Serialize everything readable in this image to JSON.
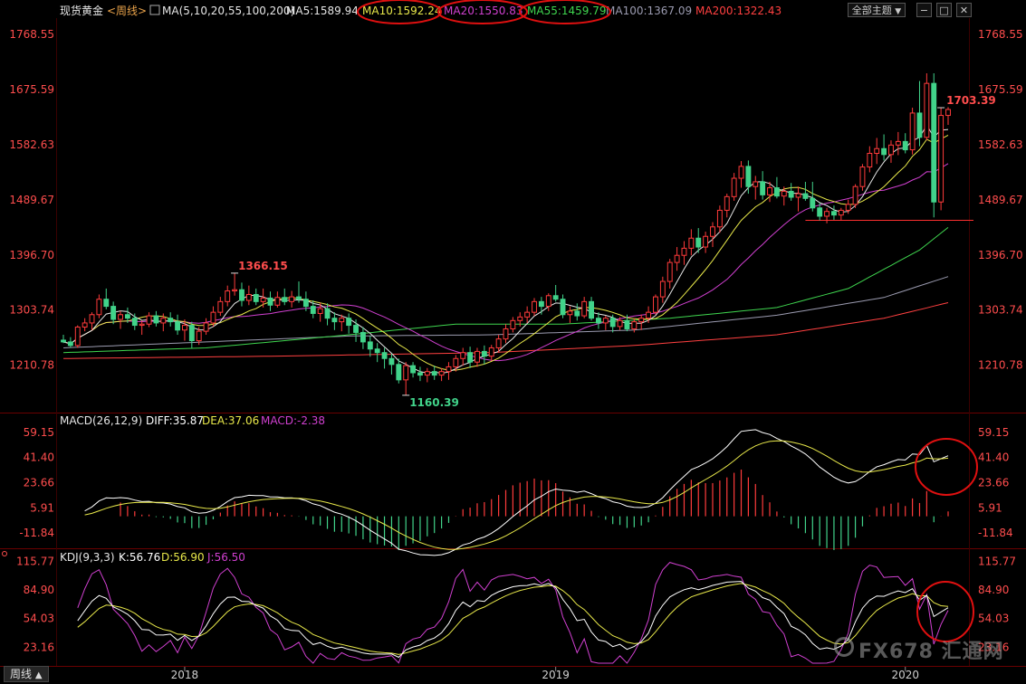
{
  "header": {
    "symbol": "现货黄金",
    "period_tag": "<周线>",
    "ma_params": "MA(5,10,20,55,100,200)",
    "ma": [
      {
        "label": "MA5:1589.94",
        "color": "#e6e6e6"
      },
      {
        "label": "MA10:1592.24",
        "color": "#e8e84a"
      },
      {
        "label": "MA20:1550.83",
        "color": "#d040d0"
      },
      {
        "label": "MA55:1459.79",
        "color": "#3fd64f"
      },
      {
        "label": "MA100:1367.09",
        "color": "#9b9bb0"
      },
      {
        "label": "MA200:1322.43",
        "color": "#ff4040"
      }
    ],
    "theme_button": "全部主题",
    "theme_button_arrow": "▼"
  },
  "price_axis": {
    "labels": [
      "1768.55",
      "1675.59",
      "1582.63",
      "1489.67",
      "1396.70",
      "1303.74",
      "1210.78"
    ],
    "values": [
      1768.55,
      1675.59,
      1582.63,
      1489.67,
      1396.7,
      1303.74,
      1210.78
    ]
  },
  "annotations": {
    "high_2018": "1366.15",
    "low_2018": "1160.39",
    "high_2020": "1703.39"
  },
  "macd": {
    "title": "MACD(26,12,9)",
    "diff": "DIFF:35.87",
    "dea": "DEA:37.06",
    "macd": "MACD:-2.38",
    "axis_labels": [
      "59.15",
      "41.40",
      "23.66",
      "5.91",
      "-11.84"
    ],
    "axis_values": [
      59.15,
      41.4,
      23.66,
      5.91,
      -11.84
    ]
  },
  "kdj": {
    "title": "KDJ(9,3,3)",
    "k": "K:56.76",
    "d": "D:56.90",
    "j": "J:56.50",
    "axis_labels": [
      "115.77",
      "84.90",
      "54.03",
      "23.16"
    ],
    "axis_values": [
      115.77,
      84.9,
      54.03,
      23.16
    ]
  },
  "x_axis": {
    "labels": [
      "2018",
      "2019",
      "2020"
    ]
  },
  "footer": {
    "period_tab": "周线",
    "period_tab_arrow": "▲",
    "watermark": "FX678 汇通网"
  },
  "colors": {
    "up": "#ff3b3b",
    "down": "#41d38a",
    "diff": "#ffffff",
    "dea": "#e8e84a",
    "k": "#ffffff",
    "d": "#e8e84a",
    "j": "#d040d0",
    "circle": "#e01010"
  },
  "chart_data": {
    "type": "candlestick",
    "period": "weekly",
    "candles": [
      [
        1253,
        1262,
        1248,
        1250
      ],
      [
        1250,
        1258,
        1240,
        1244
      ],
      [
        1244,
        1278,
        1240,
        1275
      ],
      [
        1275,
        1290,
        1268,
        1282
      ],
      [
        1282,
        1300,
        1270,
        1296
      ],
      [
        1296,
        1330,
        1290,
        1322
      ],
      [
        1322,
        1340,
        1305,
        1310
      ],
      [
        1310,
        1318,
        1280,
        1288
      ],
      [
        1288,
        1302,
        1272,
        1296
      ],
      [
        1296,
        1308,
        1282,
        1290
      ],
      [
        1290,
        1298,
        1270,
        1278
      ],
      [
        1278,
        1286,
        1262,
        1280
      ],
      [
        1280,
        1300,
        1275,
        1294
      ],
      [
        1294,
        1302,
        1276,
        1282
      ],
      [
        1282,
        1298,
        1268,
        1290
      ],
      [
        1290,
        1300,
        1276,
        1284
      ],
      [
        1284,
        1296,
        1262,
        1270
      ],
      [
        1270,
        1288,
        1252,
        1278
      ],
      [
        1278,
        1284,
        1240,
        1252
      ],
      [
        1252,
        1275,
        1245,
        1268
      ],
      [
        1268,
        1290,
        1262,
        1282
      ],
      [
        1282,
        1310,
        1276,
        1300
      ],
      [
        1300,
        1326,
        1294,
        1318
      ],
      [
        1318,
        1345,
        1310,
        1336
      ],
      [
        1336,
        1366,
        1328,
        1338
      ],
      [
        1338,
        1350,
        1310,
        1320
      ],
      [
        1320,
        1345,
        1312,
        1330
      ],
      [
        1330,
        1340,
        1312,
        1318
      ],
      [
        1318,
        1340,
        1308,
        1324
      ],
      [
        1324,
        1335,
        1302,
        1312
      ],
      [
        1312,
        1335,
        1308,
        1325
      ],
      [
        1325,
        1340,
        1312,
        1318
      ],
      [
        1318,
        1336,
        1308,
        1326
      ],
      [
        1326,
        1352,
        1316,
        1322
      ],
      [
        1322,
        1335,
        1302,
        1310
      ],
      [
        1310,
        1320,
        1290,
        1298
      ],
      [
        1298,
        1316,
        1284,
        1306
      ],
      [
        1306,
        1315,
        1278,
        1290
      ],
      [
        1290,
        1300,
        1270,
        1284
      ],
      [
        1284,
        1296,
        1268,
        1290
      ],
      [
        1290,
        1298,
        1264,
        1278
      ],
      [
        1278,
        1288,
        1250,
        1266
      ],
      [
        1266,
        1275,
        1238,
        1250
      ],
      [
        1250,
        1260,
        1225,
        1238
      ],
      [
        1238,
        1248,
        1216,
        1232
      ],
      [
        1232,
        1240,
        1205,
        1222
      ],
      [
        1222,
        1230,
        1195,
        1212
      ],
      [
        1212,
        1222,
        1180,
        1186
      ],
      [
        1186,
        1216,
        1160,
        1210
      ],
      [
        1210,
        1216,
        1190,
        1198
      ],
      [
        1198,
        1208,
        1184,
        1194
      ],
      [
        1194,
        1206,
        1182,
        1200
      ],
      [
        1200,
        1210,
        1186,
        1194
      ],
      [
        1194,
        1206,
        1184,
        1200
      ],
      [
        1200,
        1216,
        1186,
        1208
      ],
      [
        1208,
        1228,
        1200,
        1222
      ],
      [
        1222,
        1240,
        1210,
        1232
      ],
      [
        1232,
        1242,
        1206,
        1216
      ],
      [
        1216,
        1240,
        1208,
        1234
      ],
      [
        1234,
        1244,
        1212,
        1226
      ],
      [
        1226,
        1245,
        1218,
        1240
      ],
      [
        1240,
        1262,
        1232,
        1255
      ],
      [
        1255,
        1280,
        1248,
        1272
      ],
      [
        1272,
        1292,
        1266,
        1286
      ],
      [
        1286,
        1300,
        1276,
        1292
      ],
      [
        1292,
        1310,
        1282,
        1300
      ],
      [
        1300,
        1324,
        1294,
        1318
      ],
      [
        1318,
        1326,
        1296,
        1310
      ],
      [
        1310,
        1332,
        1302,
        1328
      ],
      [
        1328,
        1346,
        1318,
        1322
      ],
      [
        1322,
        1330,
        1290,
        1296
      ],
      [
        1296,
        1310,
        1282,
        1302
      ],
      [
        1302,
        1315,
        1286,
        1294
      ],
      [
        1294,
        1326,
        1290,
        1318
      ],
      [
        1318,
        1326,
        1286,
        1290
      ],
      [
        1290,
        1300,
        1272,
        1282
      ],
      [
        1282,
        1294,
        1270,
        1290
      ],
      [
        1290,
        1296,
        1266,
        1276
      ],
      [
        1276,
        1292,
        1270,
        1286
      ],
      [
        1286,
        1296,
        1268,
        1272
      ],
      [
        1272,
        1290,
        1266,
        1284
      ],
      [
        1284,
        1296,
        1270,
        1290
      ],
      [
        1290,
        1310,
        1282,
        1300
      ],
      [
        1300,
        1330,
        1296,
        1326
      ],
      [
        1326,
        1360,
        1316,
        1352
      ],
      [
        1352,
        1390,
        1340,
        1384
      ],
      [
        1384,
        1410,
        1370,
        1396
      ],
      [
        1396,
        1420,
        1380,
        1408
      ],
      [
        1408,
        1440,
        1396,
        1425
      ],
      [
        1425,
        1442,
        1400,
        1410
      ],
      [
        1410,
        1436,
        1400,
        1428
      ],
      [
        1428,
        1452,
        1410,
        1444
      ],
      [
        1444,
        1480,
        1434,
        1472
      ],
      [
        1472,
        1500,
        1460,
        1495
      ],
      [
        1495,
        1535,
        1488,
        1526
      ],
      [
        1526,
        1555,
        1510,
        1546
      ],
      [
        1546,
        1556,
        1500,
        1512
      ],
      [
        1512,
        1530,
        1490,
        1520
      ],
      [
        1520,
        1538,
        1490,
        1498
      ],
      [
        1498,
        1520,
        1486,
        1510
      ],
      [
        1510,
        1528,
        1492,
        1496
      ],
      [
        1496,
        1512,
        1480,
        1504
      ],
      [
        1504,
        1518,
        1488,
        1494
      ],
      [
        1494,
        1512,
        1470,
        1500
      ],
      [
        1500,
        1520,
        1488,
        1492
      ],
      [
        1492,
        1520,
        1470,
        1476
      ],
      [
        1476,
        1484,
        1455,
        1462
      ],
      [
        1462,
        1476,
        1450,
        1470
      ],
      [
        1470,
        1480,
        1456,
        1464
      ],
      [
        1464,
        1476,
        1455,
        1472
      ],
      [
        1472,
        1490,
        1466,
        1482
      ],
      [
        1482,
        1516,
        1476,
        1512
      ],
      [
        1512,
        1550,
        1505,
        1545
      ],
      [
        1545,
        1580,
        1536,
        1568
      ],
      [
        1568,
        1594,
        1550,
        1576
      ],
      [
        1576,
        1600,
        1556,
        1566
      ],
      [
        1566,
        1590,
        1552,
        1582
      ],
      [
        1582,
        1604,
        1565,
        1588
      ],
      [
        1588,
        1602,
        1568,
        1574
      ],
      [
        1574,
        1645,
        1566,
        1636
      ],
      [
        1636,
        1690,
        1580,
        1595
      ],
      [
        1595,
        1703,
        1590,
        1686
      ],
      [
        1686,
        1703,
        1460,
        1486
      ],
      [
        1486,
        1645,
        1472,
        1632
      ],
      [
        1632,
        1646,
        1616,
        1642
      ]
    ],
    "annotations": [
      {
        "text": "1366.15",
        "type": "high",
        "index": 24
      },
      {
        "text": "1160.39",
        "type": "low",
        "index": 48
      },
      {
        "text": "1703.39",
        "type": "high",
        "index": 123
      }
    ],
    "ma_periods": [
      5,
      10,
      20,
      55,
      100,
      200
    ],
    "long_ma_curves": {
      "ma55": [
        [
          0,
          1232
        ],
        [
          20,
          1240
        ],
        [
          40,
          1262
        ],
        [
          55,
          1280
        ],
        [
          70,
          1280
        ],
        [
          85,
          1290
        ],
        [
          100,
          1308
        ],
        [
          110,
          1340
        ],
        [
          120,
          1405
        ],
        [
          126,
          1462
        ]
      ],
      "ma100": [
        [
          0,
          1240
        ],
        [
          20,
          1250
        ],
        [
          40,
          1260
        ],
        [
          60,
          1262
        ],
        [
          80,
          1270
        ],
        [
          100,
          1295
        ],
        [
          115,
          1325
        ],
        [
          126,
          1368
        ]
      ],
      "ma200": [
        [
          0,
          1222
        ],
        [
          30,
          1226
        ],
        [
          60,
          1232
        ],
        [
          80,
          1244
        ],
        [
          100,
          1262
        ],
        [
          115,
          1290
        ],
        [
          126,
          1322
        ]
      ]
    },
    "support_line": {
      "value": 1455,
      "from_index": 104,
      "to_index": 128
    },
    "ylim": [
      1140,
      1790
    ],
    "x_labels": [
      {
        "label": "2018",
        "index": 17
      },
      {
        "label": "2019",
        "index": 69
      },
      {
        "label": "2020",
        "index": 118
      }
    ],
    "macd_ylim": [
      -20,
      68
    ],
    "kdj_ylim": [
      5,
      122
    ]
  }
}
